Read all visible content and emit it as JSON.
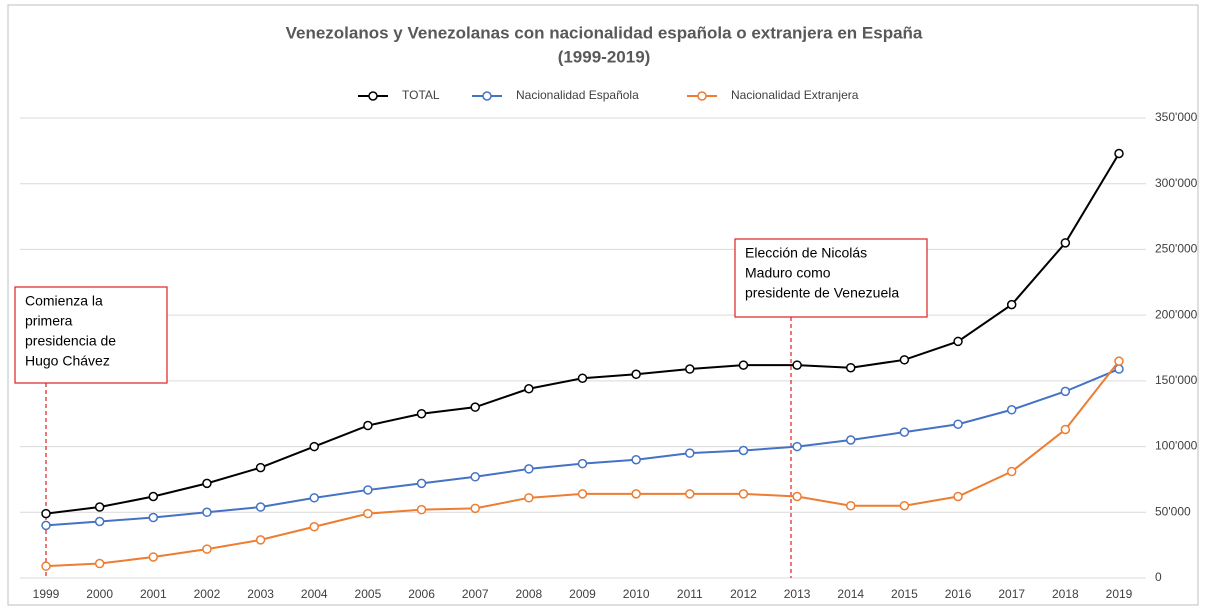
{
  "chart_data": {
    "type": "line",
    "title": [
      "Venezolanos y Venezolanas con nacionalidad española o extranjera en España",
      "(1999-2019)"
    ],
    "categories": [
      "1999",
      "2000",
      "2001",
      "2002",
      "2003",
      "2004",
      "2005",
      "2006",
      "2007",
      "2008",
      "2009",
      "2010",
      "2011",
      "2012",
      "2013",
      "2014",
      "2015",
      "2016",
      "2017",
      "2018",
      "2019"
    ],
    "series": [
      {
        "name": "TOTAL",
        "color": "#000000",
        "values": [
          49000,
          54000,
          62000,
          72000,
          84000,
          100000,
          116000,
          125000,
          130000,
          144000,
          152000,
          155000,
          159000,
          162000,
          162000,
          160000,
          166000,
          180000,
          208000,
          255000,
          323000
        ]
      },
      {
        "name": "Nacionalidad Española",
        "color": "#4472c4",
        "values": [
          40000,
          43000,
          46000,
          50000,
          54000,
          61000,
          67000,
          72000,
          77000,
          83000,
          87000,
          90000,
          95000,
          97000,
          100000,
          105000,
          111000,
          117000,
          128000,
          142000,
          159000
        ]
      },
      {
        "name": "Nacionalidad Extranjera",
        "color": "#ed7d31",
        "values": [
          9000,
          11000,
          16000,
          22000,
          29000,
          39000,
          49000,
          52000,
          53000,
          61000,
          64000,
          64000,
          64000,
          64000,
          62000,
          55000,
          55000,
          62000,
          81000,
          113000,
          165000
        ]
      }
    ],
    "ylim": [
      0,
      350000
    ],
    "yticks": [
      0,
      {
        "value": 50000,
        "label": "50'000"
      },
      {
        "value": 100000,
        "label": "100'000"
      },
      {
        "value": 150000,
        "label": "150'000"
      },
      {
        "value": 200000,
        "label": "200'000"
      },
      {
        "value": 250000,
        "label": "250'000"
      },
      {
        "value": 300000,
        "label": "300'000"
      },
      {
        "value": 350000,
        "label": "350'000"
      }
    ],
    "grid": true,
    "annotations": [
      {
        "lines": [
          "Comienza la",
          "primera",
          "presidencia de",
          "Hugo Chávez"
        ]
      },
      {
        "lines": [
          "Elección de Nicolás",
          "Maduro como",
          "presidente de Venezuela"
        ]
      }
    ]
  }
}
